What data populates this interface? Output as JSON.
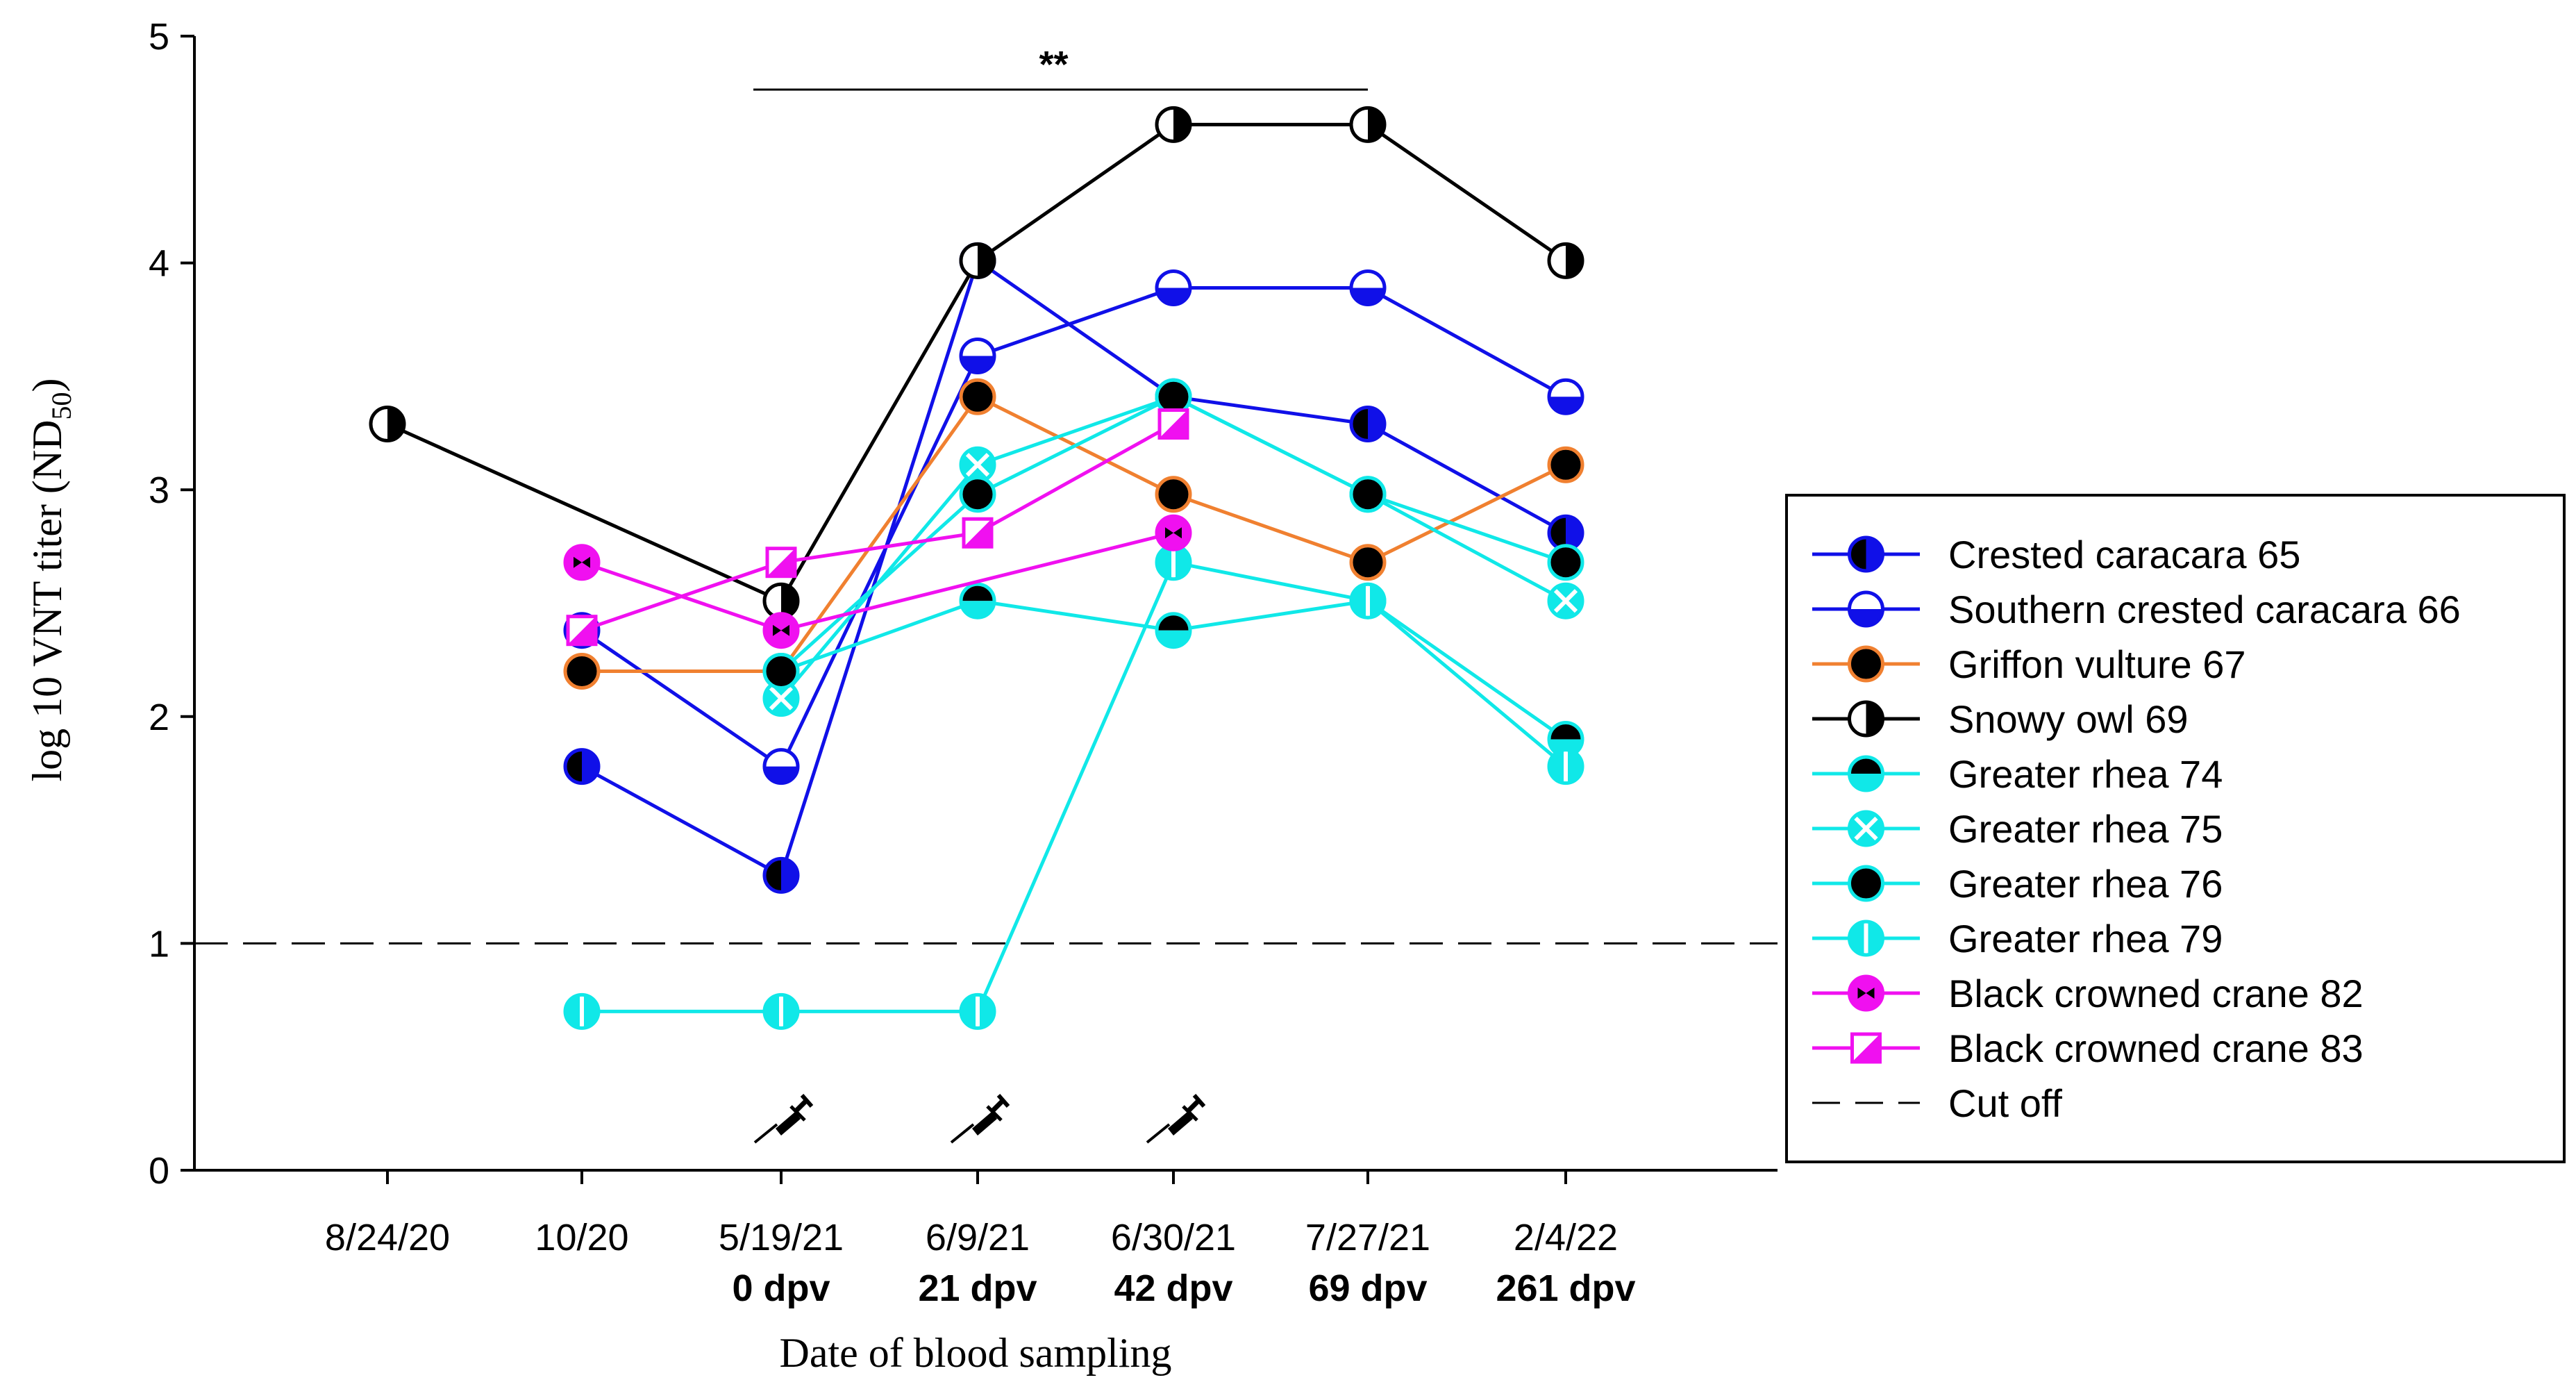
{
  "chart_data": {
    "type": "line",
    "title": "",
    "xlabel": "Date of blood sampling",
    "ylabel": "log 10 VNT titer (ND",
    "ylabel_sub": "50",
    "ylabel_close": ")",
    "ylim": [
      0,
      5
    ],
    "yticks": [
      "0",
      "1",
      "2",
      "3",
      "4",
      "5"
    ],
    "categories": [
      "8/24/20",
      "10/20",
      "5/19/21",
      "6/9/21",
      "6/30/21",
      "7/27/21",
      "2/4/22"
    ],
    "dpv_labels": [
      "",
      "",
      "0 dpv",
      "21 dpv",
      "42 dpv",
      "69 dpv",
      "261 dpv"
    ],
    "vaccination_icon": "syringe-icon",
    "vaccination_points": [
      2,
      3,
      4
    ],
    "cutoff": {
      "name": "Cut off",
      "value": 1
    },
    "significance": {
      "label": "**",
      "from_index": 2,
      "to_index": 5,
      "y": 4.85
    },
    "series": [
      {
        "name": "Crested caracara 65",
        "color": "#1010E8",
        "marker": "fill-left",
        "values": [
          null,
          1.78,
          1.3,
          4.01,
          3.41,
          3.29,
          2.81
        ]
      },
      {
        "name": "Southern crested caracara 66",
        "color": "#1010E8",
        "marker": "fill-bottom",
        "values": [
          null,
          2.38,
          1.78,
          3.59,
          3.89,
          3.89,
          3.41
        ]
      },
      {
        "name": "Griffon vulture 67",
        "color": "#F08030",
        "marker": "black",
        "values": [
          null,
          2.2,
          2.2,
          3.41,
          2.98,
          2.68,
          3.11
        ]
      },
      {
        "name": "Snowy owl 69",
        "color": "#000000",
        "marker": "fill-right",
        "values": [
          3.29,
          null,
          2.51,
          4.01,
          4.61,
          4.61,
          4.01
        ]
      },
      {
        "name": "Greater rhea 74",
        "color": "#10E8E8",
        "marker": "black-top",
        "values": [
          null,
          null,
          2.2,
          2.51,
          2.38,
          2.51,
          1.9
        ]
      },
      {
        "name": "Greater rhea 75",
        "color": "#10E8E8",
        "marker": "x",
        "values": [
          null,
          null,
          2.08,
          3.11,
          3.41,
          2.98,
          2.51
        ]
      },
      {
        "name": "Greater rhea 76",
        "color": "#10E8E8",
        "marker": "black",
        "values": [
          null,
          null,
          2.2,
          2.98,
          3.41,
          2.98,
          2.68
        ]
      },
      {
        "name": "Greater rhea 79",
        "color": "#10E8E8",
        "marker": "vline",
        "values": [
          null,
          0.7,
          0.7,
          0.7,
          2.68,
          2.51,
          1.78
        ]
      },
      {
        "name": "Black crowned crane 82",
        "color": "#F010F0",
        "marker": "hourglass",
        "values": [
          null,
          2.68,
          2.38,
          null,
          2.81,
          null,
          null
        ]
      },
      {
        "name": "Black crowned crane 83",
        "color": "#F010F0",
        "marker": "square-half",
        "values": [
          null,
          2.38,
          2.68,
          2.81,
          3.29,
          null,
          null
        ]
      }
    ]
  }
}
